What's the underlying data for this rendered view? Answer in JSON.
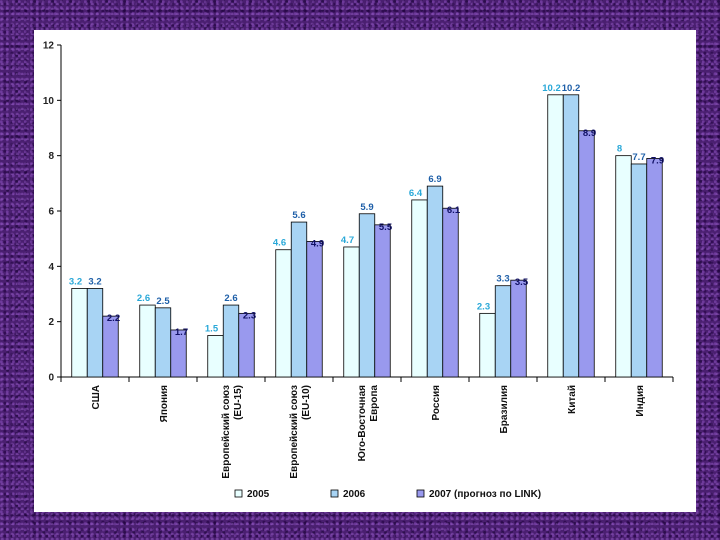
{
  "chart_data": {
    "type": "bar",
    "categories": [
      "США",
      "Япония",
      "Европейский союз (EU-15)",
      "Европейский союз (EU-10)",
      "Юго-Восточная Европа",
      "Россия",
      "Бразилия",
      "Китай",
      "Индия"
    ],
    "category_lines": [
      [
        "США"
      ],
      [
        "Япония"
      ],
      [
        "Европейский союз",
        "(EU-15)"
      ],
      [
        "Европейский союз",
        "(EU-10)"
      ],
      [
        "Юго-Восточная",
        "Европа"
      ],
      [
        "Россия"
      ],
      [
        "Бразилия"
      ],
      [
        "Китай"
      ],
      [
        "Индия"
      ]
    ],
    "series": [
      {
        "name": "2005",
        "values": [
          3.2,
          2.6,
          1.5,
          4.6,
          4.7,
          6.4,
          2.3,
          10.2,
          8
        ],
        "labels": [
          "3.2",
          "2.6",
          "1.5",
          "4.6",
          "4.7",
          "6.4",
          "2.3",
          "10.2",
          "8"
        ],
        "fill": "#e8ffff",
        "label_color": "#29a8d8"
      },
      {
        "name": "2006",
        "values": [
          3.2,
          2.5,
          2.6,
          5.6,
          5.9,
          6.9,
          3.3,
          10.2,
          7.7
        ],
        "labels": [
          "3.2",
          "2.5",
          "2.6",
          "5.6",
          "5.9",
          "6.9",
          "3.3",
          "10.2",
          "7.7"
        ],
        "fill": "#a8d4f4",
        "label_color": "#1e5fa8"
      },
      {
        "name": "2007 (прогноз по LINK)",
        "values": [
          2.2,
          1.7,
          2.3,
          4.9,
          5.5,
          6.1,
          3.5,
          8.9,
          7.9
        ],
        "labels": [
          "2.2",
          "1.7",
          "2.3",
          "4.9",
          "5.5",
          "6.1",
          "3.5",
          "8.9",
          "7.9"
        ],
        "fill": "#9999ee",
        "label_color": "#111166"
      }
    ],
    "yticks": [
      "0",
      "2",
      "4",
      "6",
      "8",
      "10",
      "12"
    ],
    "ylim": [
      0,
      12
    ],
    "xlabel": "",
    "ylabel": "",
    "title": "",
    "grid": false,
    "legend_position": "bottom",
    "colors": {
      "background": "#4a1f70",
      "panel": "#ffffff",
      "axis": "#000000"
    }
  }
}
